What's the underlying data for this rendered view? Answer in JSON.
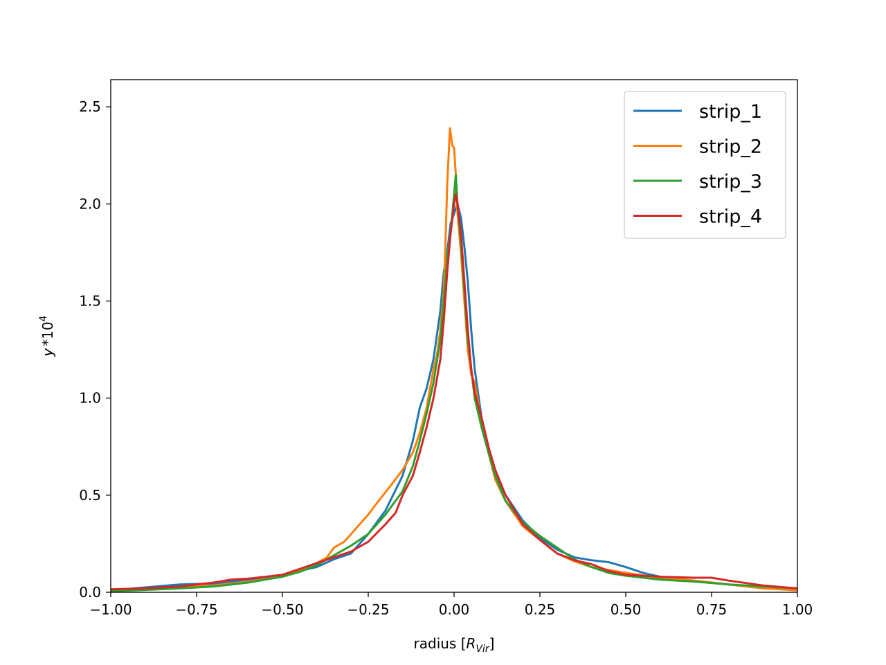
{
  "chart_data": {
    "type": "line",
    "title": "",
    "xlabel": {
      "prefix": "radius [",
      "symbol": "R",
      "subscript": "Vir",
      "suffix": "]"
    },
    "ylabel": {
      "base": "y",
      "operator": "*",
      "factor": "10",
      "exponent": "4"
    },
    "xlim": [
      -1.0,
      1.0
    ],
    "ylim": [
      0.0,
      2.64
    ],
    "xticks": [
      -1.0,
      -0.75,
      -0.5,
      -0.25,
      0.0,
      0.25,
      0.5,
      0.75,
      1.0
    ],
    "xtick_labels": [
      "−1.00",
      "−0.75",
      "−0.50",
      "−0.25",
      "0.00",
      "0.25",
      "0.50",
      "0.75",
      "1.00"
    ],
    "yticks": [
      0.0,
      0.5,
      1.0,
      1.5,
      2.0,
      2.5
    ],
    "ytick_labels": [
      "0.0",
      "0.5",
      "1.0",
      "1.5",
      "2.0",
      "2.5"
    ],
    "grid": false,
    "legend_position": "top-right",
    "series": [
      {
        "name": "strip_1",
        "color": "#1f77b4",
        "points": [
          [
            -1.0,
            0.01
          ],
          [
            -0.9,
            0.025
          ],
          [
            -0.8,
            0.04
          ],
          [
            -0.7,
            0.045
          ],
          [
            -0.6,
            0.065
          ],
          [
            -0.5,
            0.09
          ],
          [
            -0.4,
            0.13
          ],
          [
            -0.35,
            0.17
          ],
          [
            -0.3,
            0.2
          ],
          [
            -0.25,
            0.3
          ],
          [
            -0.2,
            0.42
          ],
          [
            -0.15,
            0.6
          ],
          [
            -0.12,
            0.78
          ],
          [
            -0.1,
            0.95
          ],
          [
            -0.08,
            1.05
          ],
          [
            -0.06,
            1.2
          ],
          [
            -0.04,
            1.45
          ],
          [
            -0.03,
            1.65
          ],
          [
            -0.02,
            1.75
          ],
          [
            -0.01,
            1.9
          ],
          [
            0.0,
            1.95
          ],
          [
            0.01,
            2.0
          ],
          [
            0.02,
            1.93
          ],
          [
            0.03,
            1.78
          ],
          [
            0.04,
            1.6
          ],
          [
            0.05,
            1.35
          ],
          [
            0.06,
            1.15
          ],
          [
            0.08,
            0.9
          ],
          [
            0.1,
            0.75
          ],
          [
            0.12,
            0.62
          ],
          [
            0.15,
            0.5
          ],
          [
            0.2,
            0.37
          ],
          [
            0.25,
            0.28
          ],
          [
            0.3,
            0.22
          ],
          [
            0.35,
            0.18
          ],
          [
            0.4,
            0.165
          ],
          [
            0.45,
            0.155
          ],
          [
            0.5,
            0.13
          ],
          [
            0.55,
            0.1
          ],
          [
            0.6,
            0.08
          ],
          [
            0.7,
            0.06
          ],
          [
            0.8,
            0.04
          ],
          [
            0.9,
            0.025
          ],
          [
            1.0,
            0.015
          ]
        ]
      },
      {
        "name": "strip_2",
        "color": "#ff7f0e",
        "points": [
          [
            -1.0,
            0.005
          ],
          [
            -0.9,
            0.015
          ],
          [
            -0.8,
            0.025
          ],
          [
            -0.7,
            0.035
          ],
          [
            -0.6,
            0.055
          ],
          [
            -0.5,
            0.08
          ],
          [
            -0.45,
            0.11
          ],
          [
            -0.4,
            0.15
          ],
          [
            -0.37,
            0.18
          ],
          [
            -0.35,
            0.23
          ],
          [
            -0.32,
            0.26
          ],
          [
            -0.28,
            0.34
          ],
          [
            -0.25,
            0.4
          ],
          [
            -0.22,
            0.47
          ],
          [
            -0.18,
            0.56
          ],
          [
            -0.15,
            0.63
          ],
          [
            -0.12,
            0.72
          ],
          [
            -0.1,
            0.82
          ],
          [
            -0.08,
            0.95
          ],
          [
            -0.06,
            1.15
          ],
          [
            -0.05,
            1.22
          ],
          [
            -0.04,
            1.35
          ],
          [
            -0.03,
            1.55
          ],
          [
            -0.025,
            1.8
          ],
          [
            -0.02,
            2.1
          ],
          [
            -0.012,
            2.39
          ],
          [
            -0.005,
            2.3
          ],
          [
            0.0,
            2.29
          ],
          [
            0.005,
            2.15
          ],
          [
            0.01,
            1.95
          ],
          [
            0.02,
            1.75
          ],
          [
            0.03,
            1.5
          ],
          [
            0.04,
            1.25
          ],
          [
            0.05,
            1.12
          ],
          [
            0.06,
            1.08
          ],
          [
            0.08,
            0.88
          ],
          [
            0.1,
            0.72
          ],
          [
            0.12,
            0.58
          ],
          [
            0.15,
            0.47
          ],
          [
            0.2,
            0.34
          ],
          [
            0.25,
            0.27
          ],
          [
            0.3,
            0.2
          ],
          [
            0.35,
            0.16
          ],
          [
            0.4,
            0.13
          ],
          [
            0.5,
            0.1
          ],
          [
            0.6,
            0.075
          ],
          [
            0.7,
            0.06
          ],
          [
            0.8,
            0.04
          ],
          [
            0.9,
            0.02
          ],
          [
            1.0,
            0.01
          ]
        ]
      },
      {
        "name": "strip_3",
        "color": "#2ca02c",
        "points": [
          [
            -1.0,
            0.005
          ],
          [
            -0.9,
            0.012
          ],
          [
            -0.8,
            0.02
          ],
          [
            -0.7,
            0.03
          ],
          [
            -0.6,
            0.05
          ],
          [
            -0.5,
            0.08
          ],
          [
            -0.45,
            0.105
          ],
          [
            -0.4,
            0.14
          ],
          [
            -0.35,
            0.19
          ],
          [
            -0.3,
            0.24
          ],
          [
            -0.25,
            0.3
          ],
          [
            -0.2,
            0.4
          ],
          [
            -0.15,
            0.52
          ],
          [
            -0.12,
            0.65
          ],
          [
            -0.1,
            0.78
          ],
          [
            -0.08,
            0.92
          ],
          [
            -0.06,
            1.08
          ],
          [
            -0.04,
            1.3
          ],
          [
            -0.03,
            1.5
          ],
          [
            -0.02,
            1.72
          ],
          [
            -0.01,
            1.85
          ],
          [
            0.0,
            2.05
          ],
          [
            0.005,
            2.15
          ],
          [
            0.01,
            2.0
          ],
          [
            0.02,
            1.8
          ],
          [
            0.03,
            1.55
          ],
          [
            0.04,
            1.3
          ],
          [
            0.05,
            1.15
          ],
          [
            0.06,
            1.0
          ],
          [
            0.08,
            0.85
          ],
          [
            0.1,
            0.72
          ],
          [
            0.12,
            0.6
          ],
          [
            0.15,
            0.47
          ],
          [
            0.2,
            0.36
          ],
          [
            0.25,
            0.29
          ],
          [
            0.3,
            0.23
          ],
          [
            0.35,
            0.17
          ],
          [
            0.4,
            0.13
          ],
          [
            0.45,
            0.1
          ],
          [
            0.5,
            0.085
          ],
          [
            0.6,
            0.065
          ],
          [
            0.7,
            0.055
          ],
          [
            0.8,
            0.04
          ],
          [
            0.9,
            0.03
          ],
          [
            1.0,
            0.02
          ]
        ]
      },
      {
        "name": "strip_4",
        "color": "#d62728",
        "points": [
          [
            -1.0,
            0.015
          ],
          [
            -0.9,
            0.02
          ],
          [
            -0.8,
            0.03
          ],
          [
            -0.7,
            0.05
          ],
          [
            -0.65,
            0.065
          ],
          [
            -0.6,
            0.07
          ],
          [
            -0.5,
            0.09
          ],
          [
            -0.45,
            0.12
          ],
          [
            -0.4,
            0.15
          ],
          [
            -0.35,
            0.18
          ],
          [
            -0.3,
            0.21
          ],
          [
            -0.25,
            0.26
          ],
          [
            -0.2,
            0.35
          ],
          [
            -0.17,
            0.41
          ],
          [
            -0.15,
            0.5
          ],
          [
            -0.12,
            0.6
          ],
          [
            -0.1,
            0.72
          ],
          [
            -0.08,
            0.85
          ],
          [
            -0.06,
            1.0
          ],
          [
            -0.04,
            1.2
          ],
          [
            -0.03,
            1.4
          ],
          [
            -0.02,
            1.65
          ],
          [
            -0.01,
            1.85
          ],
          [
            0.0,
            2.0
          ],
          [
            0.005,
            2.05
          ],
          [
            0.01,
            2.0
          ],
          [
            0.02,
            1.85
          ],
          [
            0.03,
            1.6
          ],
          [
            0.04,
            1.35
          ],
          [
            0.05,
            1.15
          ],
          [
            0.06,
            1.03
          ],
          [
            0.08,
            0.9
          ],
          [
            0.1,
            0.75
          ],
          [
            0.12,
            0.63
          ],
          [
            0.15,
            0.5
          ],
          [
            0.2,
            0.35
          ],
          [
            0.25,
            0.27
          ],
          [
            0.3,
            0.2
          ],
          [
            0.35,
            0.165
          ],
          [
            0.4,
            0.145
          ],
          [
            0.45,
            0.11
          ],
          [
            0.5,
            0.09
          ],
          [
            0.6,
            0.08
          ],
          [
            0.7,
            0.075
          ],
          [
            0.75,
            0.075
          ],
          [
            0.8,
            0.06
          ],
          [
            0.9,
            0.035
          ],
          [
            1.0,
            0.02
          ]
        ]
      }
    ]
  }
}
